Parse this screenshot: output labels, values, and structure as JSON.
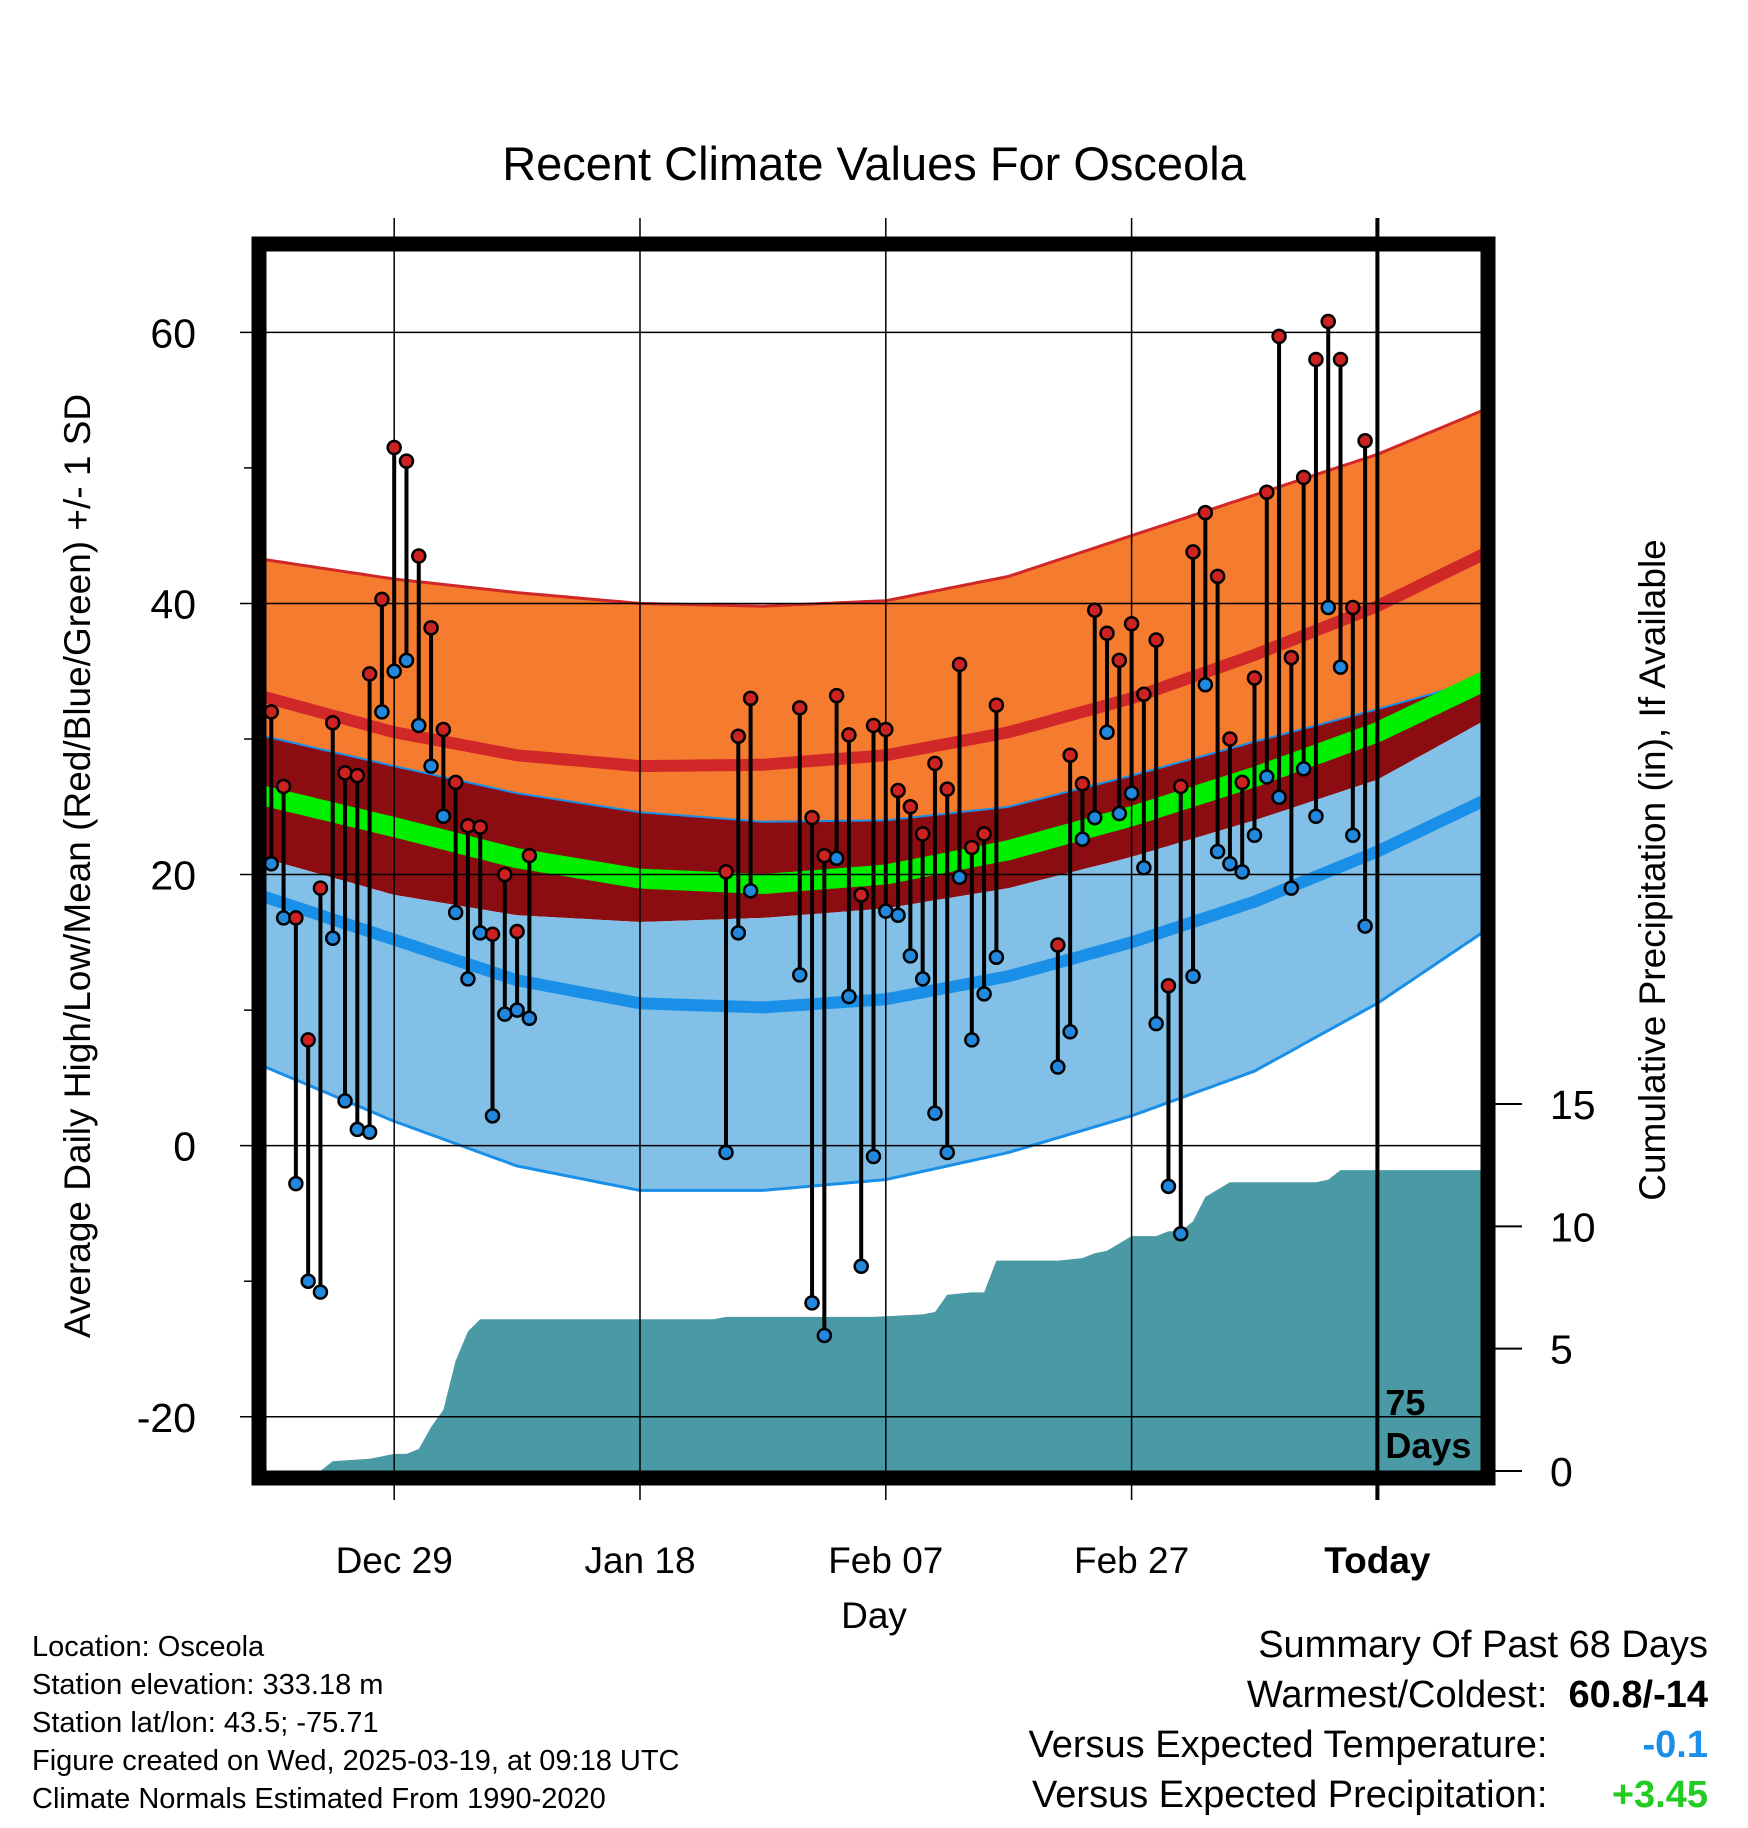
{
  "chart_data": {
    "type": "line",
    "title": "Recent Climate Values For Osceola",
    "xlabel": "Day",
    "ylabel_left": "Average Daily High/Low/Mean (Red/Blue/Green) +/- 1 SD",
    "ylabel_right": "Cumulative Precipitation (in), If Available",
    "xlim_days": [
      -11,
      89
    ],
    "ylim_temp": [
      -24,
      66
    ],
    "ylim_precip": [
      0,
      15
    ],
    "temp_ticks": [
      -20,
      0,
      20,
      40,
      60
    ],
    "precip_ticks": [
      0,
      5,
      10,
      15
    ],
    "x_ticks": [
      {
        "day": 0,
        "label": "Dec 29"
      },
      {
        "day": 20,
        "label": "Jan 18"
      },
      {
        "day": 40,
        "label": "Feb 07"
      },
      {
        "day": 60,
        "label": "Feb 27"
      },
      {
        "day": 80,
        "label": "Today",
        "bold": true
      }
    ],
    "today_marker": {
      "day": 80,
      "label_line1": "75",
      "label_line2": "Days"
    },
    "normals": {
      "days": [
        -11,
        0,
        10,
        20,
        30,
        40,
        50,
        60,
        70,
        80,
        89
      ],
      "high_mean": [
        33.2,
        30.5,
        28.8,
        28.0,
        28.1,
        28.8,
        30.5,
        33.0,
        36.2,
        39.8,
        43.8
      ],
      "high_sd_upper": [
        43.3,
        41.8,
        40.8,
        40.0,
        39.8,
        40.2,
        42.0,
        45.0,
        48.0,
        51.0,
        54.4
      ],
      "high_sd_lower": [
        30.3,
        28.0,
        26.0,
        24.6,
        23.9,
        24.0,
        25.0,
        27.3,
        29.8,
        32.2,
        34.5
      ],
      "mean_mean": [
        25.9,
        23.5,
        21.2,
        19.7,
        19.3,
        20.0,
        21.8,
        24.3,
        27.2,
        30.5,
        34.4
      ],
      "mean_sd_lower": [
        21.3,
        18.5,
        17.0,
        16.5,
        16.8,
        17.5,
        19.0,
        21.3,
        24.0,
        27.0,
        31.5
      ],
      "low_mean": [
        18.5,
        15.2,
        12.2,
        10.5,
        10.2,
        10.8,
        12.5,
        15.0,
        18.0,
        21.7,
        25.6
      ],
      "low_sd_lower": [
        6.0,
        1.8,
        -1.5,
        -3.3,
        -3.3,
        -2.5,
        -0.5,
        2.2,
        5.5,
        10.5,
        16.0
      ]
    },
    "observations": [
      {
        "day": -10,
        "high": 32.0,
        "low": 20.8
      },
      {
        "day": -9,
        "high": 26.5,
        "low": 16.8
      },
      {
        "day": -8,
        "high": 16.8,
        "low": -2.8
      },
      {
        "day": -7,
        "high": 7.8,
        "low": -10.0
      },
      {
        "day": -6,
        "high": 19.0,
        "low": -10.8
      },
      {
        "day": -5,
        "high": 31.2,
        "low": 15.3
      },
      {
        "day": -4,
        "high": 27.5,
        "low": 3.3
      },
      {
        "day": -3,
        "high": 27.3,
        "low": 1.2
      },
      {
        "day": -2,
        "high": 34.8,
        "low": 1.0
      },
      {
        "day": -1,
        "high": 40.3,
        "low": 32.0
      },
      {
        "day": 0,
        "high": 51.5,
        "low": 35.0
      },
      {
        "day": 1,
        "high": 50.5,
        "low": 35.8
      },
      {
        "day": 2,
        "high": 43.5,
        "low": 31.0
      },
      {
        "day": 3,
        "high": 38.2,
        "low": 28.0
      },
      {
        "day": 4,
        "high": 30.7,
        "low": 24.3
      },
      {
        "day": 5,
        "high": 26.8,
        "low": 17.2
      },
      {
        "day": 6,
        "high": 23.6,
        "low": 12.3
      },
      {
        "day": 7,
        "high": 23.5,
        "low": 15.7
      },
      {
        "day": 8,
        "high": 15.6,
        "low": 2.2
      },
      {
        "day": 9,
        "high": 20.0,
        "low": 9.7
      },
      {
        "day": 10,
        "high": 15.8,
        "low": 10.0
      },
      {
        "day": 11,
        "high": 21.4,
        "low": 9.4
      },
      {
        "day": 27,
        "high": 20.2,
        "low": -0.5
      },
      {
        "day": 28,
        "high": 30.2,
        "low": 15.7
      },
      {
        "day": 29,
        "high": 33.0,
        "low": 18.8
      },
      {
        "day": 33,
        "high": 32.3,
        "low": 12.6
      },
      {
        "day": 34,
        "high": 24.2,
        "low": -11.6
      },
      {
        "day": 35,
        "high": 21.4,
        "low": -14.0
      },
      {
        "day": 36,
        "high": 33.2,
        "low": 21.2
      },
      {
        "day": 37,
        "high": 30.3,
        "low": 11.0
      },
      {
        "day": 38,
        "high": 18.5,
        "low": -8.9
      },
      {
        "day": 39,
        "high": 31.0,
        "low": -0.8
      },
      {
        "day": 40,
        "high": 30.7,
        "low": 17.3
      },
      {
        "day": 41,
        "high": 26.2,
        "low": 17.0
      },
      {
        "day": 42,
        "high": 25.0,
        "low": 14.0
      },
      {
        "day": 43,
        "high": 23.0,
        "low": 12.3
      },
      {
        "day": 44,
        "high": 28.2,
        "low": 2.4
      },
      {
        "day": 45,
        "high": 26.3,
        "low": -0.5
      },
      {
        "day": 46,
        "high": 35.5,
        "low": 19.8
      },
      {
        "day": 47,
        "high": 22.0,
        "low": 7.8
      },
      {
        "day": 48,
        "high": 23.0,
        "low": 11.2
      },
      {
        "day": 49,
        "high": 32.5,
        "low": 13.9
      },
      {
        "day": 54,
        "high": 14.8,
        "low": 5.8
      },
      {
        "day": 55,
        "high": 28.8,
        "low": 8.4
      },
      {
        "day": 56,
        "high": 26.7,
        "low": 22.6
      },
      {
        "day": 57,
        "high": 39.5,
        "low": 24.2
      },
      {
        "day": 58,
        "high": 37.8,
        "low": 30.5
      },
      {
        "day": 59,
        "high": 35.8,
        "low": 24.5
      },
      {
        "day": 60,
        "high": 38.5,
        "low": 26.0
      },
      {
        "day": 61,
        "high": 33.3,
        "low": 20.5
      },
      {
        "day": 62,
        "high": 37.3,
        "low": 9.0
      },
      {
        "day": 63,
        "high": 11.8,
        "low": -3.0
      },
      {
        "day": 64,
        "high": 26.5,
        "low": -6.5
      },
      {
        "day": 65,
        "high": 43.8,
        "low": 12.5
      },
      {
        "day": 66,
        "high": 46.7,
        "low": 34.0
      },
      {
        "day": 67,
        "high": 42.0,
        "low": 21.7
      },
      {
        "day": 68,
        "high": 30.0,
        "low": 20.8
      },
      {
        "day": 69,
        "high": 26.8,
        "low": 20.2
      },
      {
        "day": 70,
        "high": 34.5,
        "low": 22.9
      },
      {
        "day": 71,
        "high": 48.2,
        "low": 27.2
      },
      {
        "day": 72,
        "high": 59.7,
        "low": 25.7
      },
      {
        "day": 73,
        "high": 36.0,
        "low": 19.0
      },
      {
        "day": 74,
        "high": 49.3,
        "low": 27.8
      },
      {
        "day": 75,
        "high": 58.0,
        "low": 24.3
      },
      {
        "day": 76,
        "high": 60.8,
        "low": 39.7
      },
      {
        "day": 77,
        "high": 58.0,
        "low": 35.3
      },
      {
        "day": 78,
        "high": 39.7,
        "low": 22.9
      },
      {
        "day": 79,
        "high": 52.0,
        "low": 16.2
      }
    ],
    "precipitation": {
      "days": [
        -11,
        -6,
        -5,
        -2,
        0,
        1,
        2,
        3,
        4,
        5,
        6,
        7,
        8,
        9,
        10,
        26,
        27,
        39,
        43,
        44,
        45,
        47,
        48,
        49,
        52,
        53,
        54,
        56,
        57,
        58,
        59,
        60,
        61,
        62,
        63,
        64,
        65,
        66,
        67,
        68,
        69,
        70,
        71,
        72,
        74,
        75,
        76,
        77,
        78,
        89
      ],
      "values": [
        0.0,
        0.0,
        0.4,
        0.5,
        0.7,
        0.7,
        0.9,
        1.8,
        2.5,
        4.5,
        5.7,
        6.2,
        6.2,
        6.2,
        6.2,
        6.2,
        6.3,
        6.3,
        6.4,
        6.5,
        7.2,
        7.3,
        7.3,
        8.6,
        8.6,
        8.6,
        8.6,
        8.7,
        8.9,
        9.0,
        9.3,
        9.6,
        9.6,
        9.6,
        9.8,
        9.8,
        10.2,
        11.2,
        11.5,
        11.8,
        11.8,
        11.8,
        11.8,
        11.8,
        11.8,
        11.8,
        11.9,
        12.3,
        12.3,
        12.3
      ]
    },
    "colors": {
      "high_band": "#f57b2f",
      "high_mean_line": "#d02828",
      "mean_band": "#8b0d12",
      "mean_line": "#00ee00",
      "low_band": "#82c0e8",
      "low_mean_line": "#1a8fe8",
      "low_edge": "#1a8fe8",
      "precip_fill": "#4a9aa5",
      "high_dot": "#cc2222",
      "low_dot": "#2288dd"
    }
  },
  "location": {
    "location_line": "Location: Osceola",
    "elevation_line": "Station elevation: 333.18 m",
    "latlon_line": "Station lat/lon: 43.5; -75.71",
    "created_line": "Figure created on Wed, 2025-03-19, at 09:18 UTC",
    "normals_line": "Climate Normals Estimated From 1990-2020"
  },
  "summary": {
    "title": "Summary Of Past 68 Days",
    "warm_cold_label": "Warmest/Coldest:",
    "warm_cold_value": "60.8/-14",
    "temp_label": "Versus Expected Temperature:",
    "temp_value": "-0.1",
    "temp_color": "#1a8fe8",
    "precip_label": "Versus Expected Precipitation:",
    "precip_value": "+3.45",
    "precip_color": "#22cc22"
  }
}
